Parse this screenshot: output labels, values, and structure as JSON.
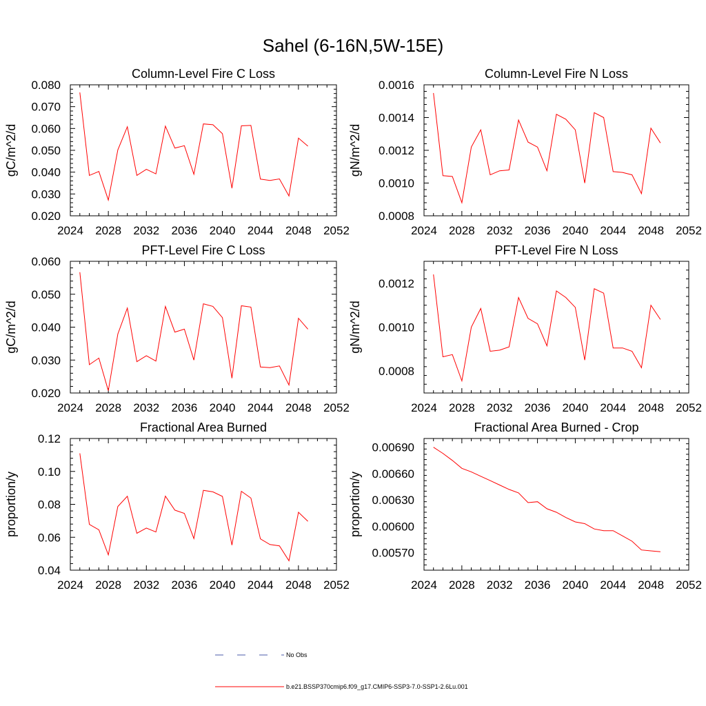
{
  "figure": {
    "title": "Sahel (6-16N,5W-15E)"
  },
  "legend": {
    "entries": [
      {
        "label": "No Obs",
        "color": "#4a5aa8",
        "dash": "12,20"
      },
      {
        "label": "b.e21.BSSP370cmip6.f09_g17.CMIP6-SSP3-7.0-SSP1-2.6Lu.001",
        "color": "#ff0000",
        "dash": ""
      }
    ]
  },
  "chart_data": [
    {
      "type": "line",
      "title": "Column-Level Fire C Loss",
      "ylabel": "gC/m^2/d",
      "xlim": [
        2024,
        2052
      ],
      "ylim": [
        0.02,
        0.08
      ],
      "xticks": [
        "2024",
        "2028",
        "2032",
        "2036",
        "2040",
        "2044",
        "2048",
        "2052"
      ],
      "yticks": [
        "0.020",
        "0.030",
        "0.040",
        "0.050",
        "0.060",
        "0.070",
        "0.080"
      ],
      "ytick_values": [
        0.02,
        0.03,
        0.04,
        0.05,
        0.06,
        0.07,
        0.08
      ],
      "x": [
        2025,
        2026,
        2027,
        2028,
        2029,
        2030,
        2031,
        2032,
        2033,
        2034,
        2035,
        2036,
        2037,
        2038,
        2039,
        2040,
        2041,
        2042,
        2043,
        2044,
        2045,
        2046,
        2047,
        2048,
        2049
      ],
      "series": [
        {
          "color": "#ff0000",
          "values": [
            0.0765,
            0.0385,
            0.0403,
            0.0272,
            0.0502,
            0.0608,
            0.0385,
            0.0413,
            0.0392,
            0.0611,
            0.051,
            0.0521,
            0.039,
            0.0621,
            0.0617,
            0.0576,
            0.0326,
            0.0612,
            0.0614,
            0.0368,
            0.0362,
            0.0369,
            0.0291,
            0.0556,
            0.0519
          ]
        }
      ]
    },
    {
      "type": "line",
      "title": "Column-Level Fire N Loss",
      "ylabel": "gN/m^2/d",
      "xlim": [
        2024,
        2052
      ],
      "ylim": [
        0.0008,
        0.0016
      ],
      "xticks": [
        "2024",
        "2028",
        "2032",
        "2036",
        "2040",
        "2044",
        "2048",
        "2052"
      ],
      "yticks": [
        "0.0008",
        "0.0010",
        "0.0012",
        "0.0014",
        "0.0016"
      ],
      "ytick_values": [
        0.0008,
        0.001,
        0.0012,
        0.0014,
        0.0016
      ],
      "x": [
        2025,
        2026,
        2027,
        2028,
        2029,
        2030,
        2031,
        2032,
        2033,
        2034,
        2035,
        2036,
        2037,
        2038,
        2039,
        2040,
        2041,
        2042,
        2043,
        2044,
        2045,
        2046,
        2047,
        2048,
        2049
      ],
      "series": [
        {
          "color": "#ff0000",
          "values": [
            0.00155,
            0.001045,
            0.00104,
            0.00088,
            0.00122,
            0.001325,
            0.00105,
            0.001075,
            0.00108,
            0.001385,
            0.00125,
            0.00122,
            0.001075,
            0.00142,
            0.00139,
            0.001325,
            0.001,
            0.00143,
            0.0014,
            0.00107,
            0.001065,
            0.00105,
            0.000935,
            0.001335,
            0.001245
          ]
        }
      ]
    },
    {
      "type": "line",
      "title": "PFT-Level Fire C Loss",
      "ylabel": "gC/m^2/d",
      "xlim": [
        2024,
        2052
      ],
      "ylim": [
        0.02,
        0.06
      ],
      "xticks": [
        "2024",
        "2028",
        "2032",
        "2036",
        "2040",
        "2044",
        "2048",
        "2052"
      ],
      "yticks": [
        "0.020",
        "0.030",
        "0.040",
        "0.050",
        "0.060"
      ],
      "ytick_values": [
        0.02,
        0.03,
        0.04,
        0.05,
        0.06
      ],
      "x": [
        2025,
        2026,
        2027,
        2028,
        2029,
        2030,
        2031,
        2032,
        2033,
        2034,
        2035,
        2036,
        2037,
        2038,
        2039,
        2040,
        2041,
        2042,
        2043,
        2044,
        2045,
        2046,
        2047,
        2048,
        2049
      ],
      "series": [
        {
          "color": "#ff0000",
          "values": [
            0.0567,
            0.0286,
            0.0306,
            0.0207,
            0.0379,
            0.0458,
            0.0295,
            0.0313,
            0.0297,
            0.0463,
            0.0385,
            0.0394,
            0.03,
            0.0471,
            0.0463,
            0.0429,
            0.0245,
            0.0465,
            0.0461,
            0.0279,
            0.0277,
            0.0282,
            0.0224,
            0.0427,
            0.0394
          ]
        }
      ]
    },
    {
      "type": "line",
      "title": "PFT-Level Fire N Loss",
      "ylabel": "gN/m^2/d",
      "xlim": [
        2024,
        2052
      ],
      "ylim": [
        0.0007,
        0.0013
      ],
      "xticks": [
        "2024",
        "2028",
        "2032",
        "2036",
        "2040",
        "2044",
        "2048",
        "2052"
      ],
      "yticks": [
        "0.0008",
        "0.0010",
        "0.0012"
      ],
      "ytick_values": [
        0.0008,
        0.001,
        0.0012
      ],
      "x": [
        2025,
        2026,
        2027,
        2028,
        2029,
        2030,
        2031,
        2032,
        2033,
        2034,
        2035,
        2036,
        2037,
        2038,
        2039,
        2040,
        2041,
        2042,
        2043,
        2044,
        2045,
        2046,
        2047,
        2048,
        2049
      ],
      "series": [
        {
          "color": "#ff0000",
          "values": [
            0.00124,
            0.000865,
            0.000875,
            0.000755,
            0.001,
            0.001085,
            0.00089,
            0.000895,
            0.00091,
            0.001135,
            0.00104,
            0.001015,
            0.000915,
            0.001165,
            0.001135,
            0.00109,
            0.00085,
            0.001175,
            0.001155,
            0.000905,
            0.000905,
            0.00089,
            0.000815,
            0.0011,
            0.001035
          ]
        }
      ]
    },
    {
      "type": "line",
      "title": "Fractional Area Burned",
      "ylabel": "proportion/y",
      "xlim": [
        2024,
        2052
      ],
      "ylim": [
        0.04,
        0.12
      ],
      "xticks": [
        "2024",
        "2028",
        "2032",
        "2036",
        "2040",
        "2044",
        "2048",
        "2052"
      ],
      "yticks": [
        "0.04",
        "0.06",
        "0.08",
        "0.10",
        "0.12"
      ],
      "ytick_values": [
        0.04,
        0.06,
        0.08,
        0.1,
        0.12
      ],
      "x": [
        2025,
        2026,
        2027,
        2028,
        2029,
        2030,
        2031,
        2032,
        2033,
        2034,
        2035,
        2036,
        2037,
        2038,
        2039,
        2040,
        2041,
        2042,
        2043,
        2044,
        2045,
        2046,
        2047,
        2048,
        2049
      ],
      "series": [
        {
          "color": "#ff0000",
          "values": [
            0.111,
            0.0678,
            0.0645,
            0.0493,
            0.0787,
            0.0849,
            0.0624,
            0.0656,
            0.0632,
            0.085,
            0.0765,
            0.0745,
            0.0592,
            0.0885,
            0.0876,
            0.0848,
            0.0552,
            0.0879,
            0.0838,
            0.059,
            0.0556,
            0.0548,
            0.0457,
            0.0752,
            0.0697
          ]
        }
      ]
    },
    {
      "type": "line",
      "title": "Fractional Area Burned - Crop",
      "ylabel": "proportion/y",
      "xlim": [
        2024,
        2052
      ],
      "ylim": [
        0.0055,
        0.007
      ],
      "xticks": [
        "2024",
        "2028",
        "2032",
        "2036",
        "2040",
        "2044",
        "2048",
        "2052"
      ],
      "yticks": [
        "0.00570",
        "0.00600",
        "0.00630",
        "0.00660",
        "0.00690"
      ],
      "ytick_values": [
        0.0057,
        0.006,
        0.0063,
        0.0066,
        0.0069
      ],
      "x": [
        2025,
        2026,
        2027,
        2028,
        2029,
        2030,
        2031,
        2032,
        2033,
        2034,
        2035,
        2036,
        2037,
        2038,
        2039,
        2040,
        2041,
        2042,
        2043,
        2044,
        2045,
        2046,
        2047,
        2048,
        2049
      ],
      "series": [
        {
          "color": "#ff0000",
          "values": [
            0.0069,
            0.00683,
            0.00675,
            0.00666,
            0.00662,
            0.00657,
            0.00652,
            0.00647,
            0.00642,
            0.00638,
            0.00627,
            0.00628,
            0.0062,
            0.00616,
            0.0061,
            0.00605,
            0.00603,
            0.00597,
            0.00595,
            0.00595,
            0.00589,
            0.00583,
            0.00573,
            0.00572,
            0.00571
          ]
        }
      ]
    }
  ]
}
